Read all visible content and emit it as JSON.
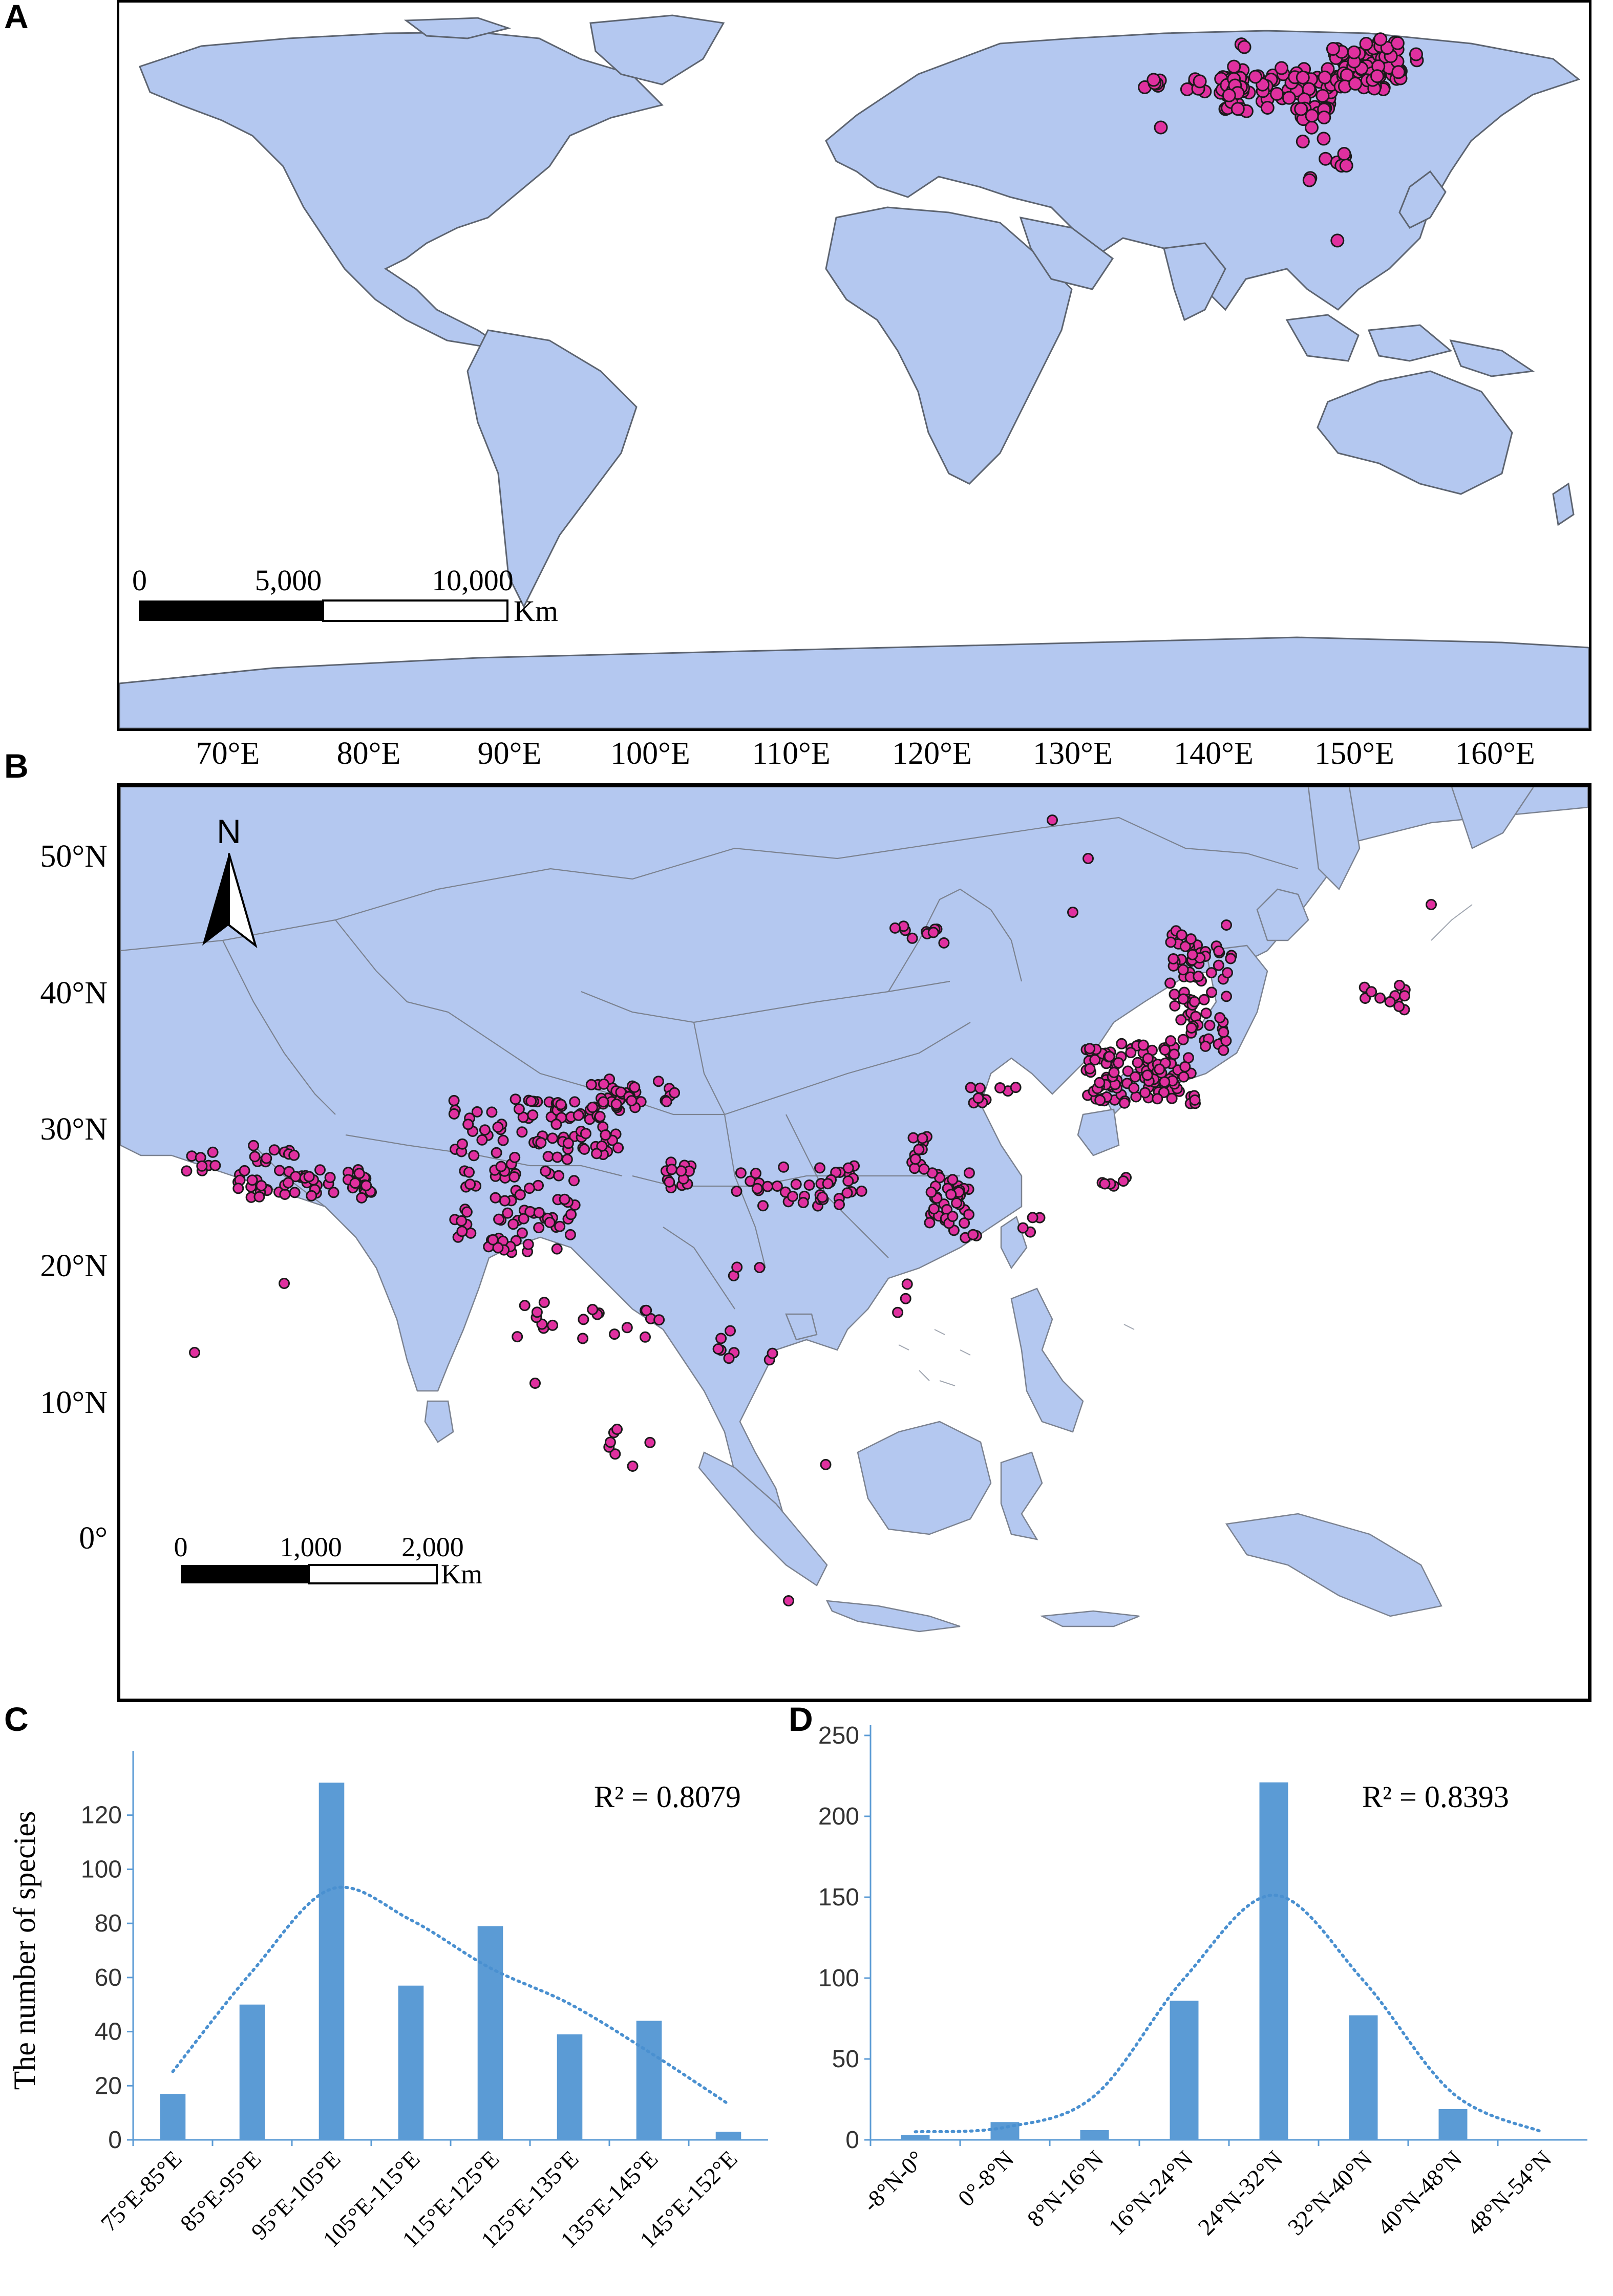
{
  "panels": {
    "a": {
      "letter": "A"
    },
    "b": {
      "letter": "B"
    },
    "c": {
      "letter": "C"
    },
    "d": {
      "letter": "D"
    }
  },
  "map_a": {
    "scale_bar": {
      "ticks": [
        "0",
        "5,000",
        "10,000"
      ],
      "unit": "Km"
    }
  },
  "map_b": {
    "lon_labels": [
      "70°E",
      "80°E",
      "90°E",
      "100°E",
      "110°E",
      "120°E",
      "130°E",
      "140°E",
      "150°E",
      "160°E"
    ],
    "lat_labels": [
      "50°N",
      "40°N",
      "30°N",
      "20°N",
      "10°N",
      "0°"
    ],
    "north_arrow_label": "N",
    "scale_bar": {
      "ticks": [
        "0",
        "1,000",
        "2,000"
      ],
      "unit": "Km"
    }
  },
  "colors": {
    "land": "#b4c8f0",
    "border": "#6a6f7a",
    "points": "#e0309f",
    "point_outline": "#1a1a1a",
    "bars": "#5b9bd5",
    "trend": "#4a90d0"
  },
  "chart_data": [
    {
      "type": "bar",
      "panel": "C",
      "ylabel": "The number of species",
      "categories": [
        "75°E-85°E",
        "85°E-95°E",
        "95°E-105°E",
        "105°E-115°E",
        "115°E-125°E",
        "125°E-135°E",
        "135°E-145°E",
        "145°E-152°E"
      ],
      "values": [
        17,
        50,
        132,
        57,
        79,
        39,
        44,
        3
      ],
      "ylim": [
        0,
        140
      ],
      "yticks": [
        0,
        20,
        40,
        60,
        80,
        100,
        120
      ],
      "trendline": "polynomial (dotted)",
      "annotation": "R² = 0.8079",
      "grid": false
    },
    {
      "type": "bar",
      "panel": "D",
      "categories": [
        "-8°N-0°",
        "0°-8°N",
        "8°N-16°N",
        "16°N-24°N",
        "24°N-32°N",
        "32°N-40°N",
        "40°N-48°N",
        "48°N-54°N"
      ],
      "values": [
        3,
        11,
        6,
        86,
        221,
        77,
        19,
        0
      ],
      "ylim": [
        0,
        250
      ],
      "yticks": [
        0,
        50,
        100,
        150,
        200,
        250
      ],
      "trendline": "polynomial (dotted)",
      "annotation": "R² = 0.8393",
      "grid": false
    }
  ]
}
